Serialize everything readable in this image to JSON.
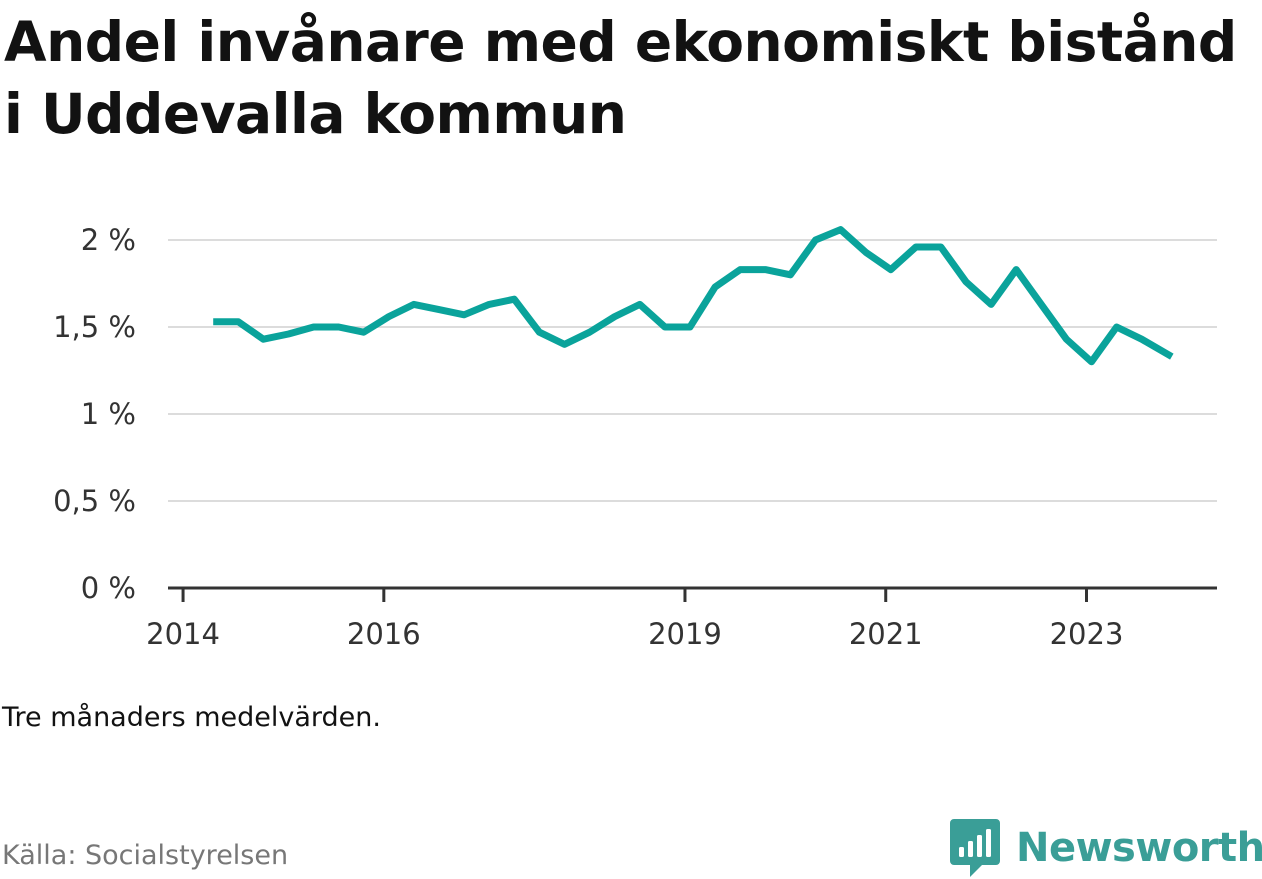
{
  "title": "Andel invånare med ekonomiskt bistånd i Uddevalla kommun",
  "note": "Tre månaders medelvärden.",
  "source": "Källa: Socialstyrelsen",
  "brand": {
    "name": "Newsworthy",
    "icon": "newsworthy-logo-icon",
    "color": "#3a9e97"
  },
  "colors": {
    "line": "#0aa39b",
    "grid": "#dcdcdc",
    "axis": "#333333"
  },
  "chart_data": {
    "type": "line",
    "title": "Andel invånare med ekonomiskt bistånd i Uddevalla kommun",
    "xlabel": "",
    "ylabel": "",
    "ylim": [
      0,
      2
    ],
    "y_ticks": [
      0,
      0.5,
      1,
      1.5,
      2
    ],
    "y_tick_labels": [
      "0 %",
      "0,5 %",
      "1 %",
      "1,5 %",
      "2 %"
    ],
    "x_ticks": [
      2014,
      2016,
      2019,
      2021,
      2023
    ],
    "x_tick_labels": [
      "2014",
      "2016",
      "2019",
      "2021",
      "2023"
    ],
    "grid": true,
    "series": [
      {
        "x": [
          2014.3,
          2014.55,
          2014.8,
          2015.05,
          2015.3,
          2015.55,
          2015.8,
          2016.05,
          2016.3,
          2016.55,
          2016.8,
          2017.05,
          2017.3,
          2017.55,
          2017.8,
          2018.05,
          2018.3,
          2018.55,
          2018.8,
          2019.05,
          2019.3,
          2019.55,
          2019.8,
          2020.05,
          2020.3,
          2020.55,
          2020.8,
          2021.05,
          2021.3,
          2021.55,
          2021.8,
          2022.05,
          2022.3,
          2022.55,
          2022.8,
          2023.05,
          2023.3,
          2023.55,
          2023.85
        ],
        "values": [
          1.53,
          1.53,
          1.43,
          1.46,
          1.5,
          1.5,
          1.47,
          1.56,
          1.63,
          1.6,
          1.57,
          1.63,
          1.66,
          1.47,
          1.4,
          1.47,
          1.56,
          1.63,
          1.5,
          1.5,
          1.73,
          1.83,
          1.83,
          1.8,
          2.0,
          2.06,
          1.93,
          1.83,
          1.96,
          1.96,
          1.76,
          1.63,
          1.83,
          1.63,
          1.43,
          1.3,
          1.5,
          1.43,
          1.33
        ]
      }
    ]
  }
}
